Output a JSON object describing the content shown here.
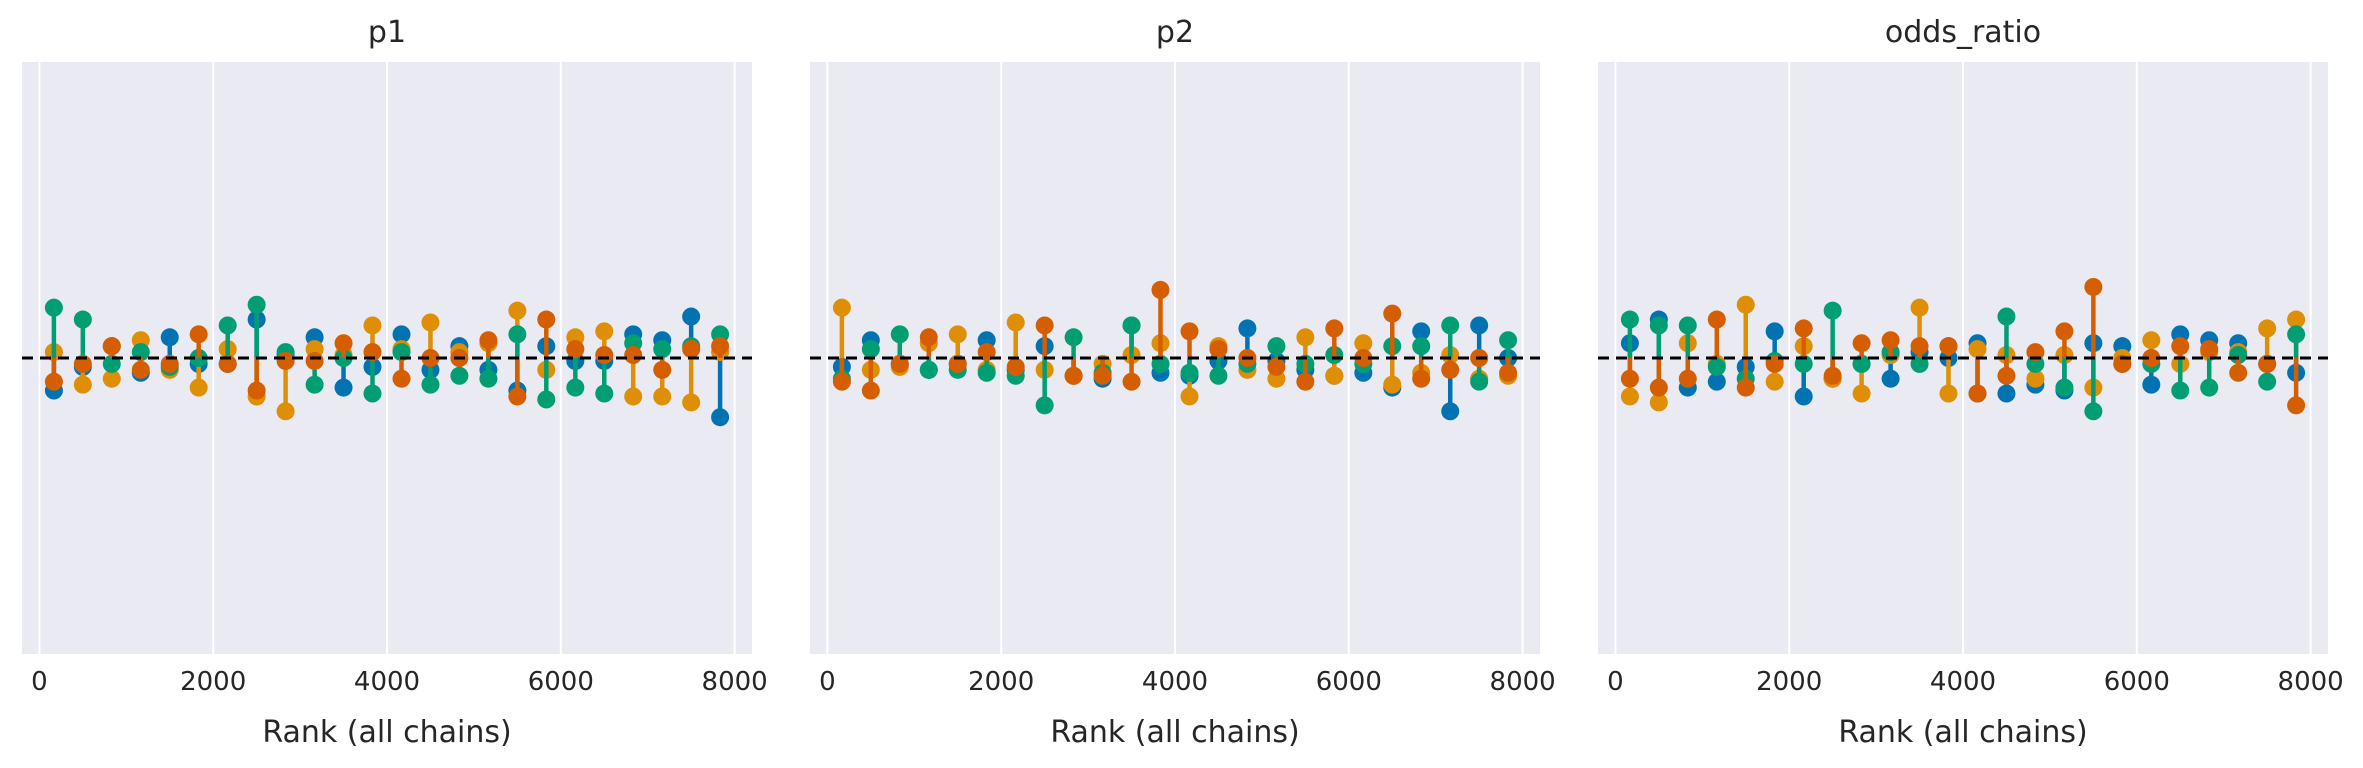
{
  "colors": {
    "background": "#eaeaf2",
    "grid": "#ffffff",
    "reference_line": "#000000"
  },
  "chart_data": [
    {
      "type": "rank_vlines",
      "title": "p1",
      "xlabel": "Rank (all chains)",
      "xticks": [
        0,
        2000,
        4000,
        6000,
        8000
      ],
      "xlim": [
        -200,
        8200
      ],
      "ylim": [
        -5,
        5
      ],
      "grid": "vertical",
      "reference_line": 0,
      "x": [
        167,
        500,
        833,
        1167,
        1500,
        1833,
        2167,
        2500,
        2833,
        3167,
        3500,
        3833,
        4167,
        4500,
        4833,
        5167,
        5500,
        5833,
        6167,
        6500,
        6833,
        7167,
        7500,
        7833
      ],
      "series": [
        {
          "color": "#0173b2",
          "values": [
            -0.55,
            -0.15,
            0.2,
            -0.25,
            0.35,
            -0.1,
            -0.1,
            0.65,
            0.05,
            0.35,
            -0.5,
            -0.15,
            0.4,
            -0.2,
            0.2,
            -0.2,
            -0.55,
            0.2,
            -0.05,
            -0.05,
            0.4,
            0.3,
            0.7,
            -1.0
          ]
        },
        {
          "color": "#de8f05",
          "values": [
            0.1,
            -0.45,
            -0.35,
            0.3,
            -0.2,
            -0.5,
            0.15,
            -0.65,
            -0.9,
            0.15,
            0.05,
            0.55,
            0.15,
            0.6,
            0.1,
            0.25,
            0.8,
            -0.2,
            0.35,
            0.45,
            -0.65,
            -0.65,
            -0.75,
            0.1
          ]
        },
        {
          "color": "#029e73",
          "values": [
            0.85,
            0.65,
            -0.1,
            0.1,
            -0.15,
            0.0,
            0.55,
            0.9,
            0.1,
            -0.45,
            0.0,
            -0.6,
            0.1,
            -0.45,
            -0.3,
            -0.35,
            0.4,
            -0.7,
            -0.5,
            -0.6,
            0.25,
            0.15,
            0.2,
            0.4
          ]
        },
        {
          "color": "#d55e00",
          "values": [
            -0.4,
            -0.1,
            0.2,
            -0.2,
            -0.1,
            0.4,
            -0.1,
            -0.55,
            -0.05,
            -0.05,
            0.25,
            0.1,
            -0.35,
            0.0,
            0.0,
            0.3,
            -0.65,
            0.65,
            0.15,
            0.05,
            0.05,
            -0.2,
            0.15,
            0.2
          ]
        }
      ]
    },
    {
      "type": "rank_vlines",
      "title": "p2",
      "xlabel": "Rank (all chains)",
      "xticks": [
        0,
        2000,
        4000,
        6000,
        8000
      ],
      "xlim": [
        -200,
        8200
      ],
      "ylim": [
        -5,
        5
      ],
      "grid": "vertical",
      "reference_line": 0,
      "x": [
        167,
        500,
        833,
        1167,
        1500,
        1833,
        2167,
        2500,
        2833,
        3167,
        3500,
        3833,
        4167,
        4500,
        4833,
        5167,
        5500,
        5833,
        6167,
        6500,
        6833,
        7167,
        7500,
        7833
      ],
      "series": [
        {
          "color": "#0173b2",
          "values": [
            -0.15,
            0.3,
            -0.1,
            -0.2,
            -0.1,
            0.3,
            -0.2,
            0.2,
            -0.3,
            -0.35,
            0.55,
            -0.25,
            -0.3,
            -0.05,
            0.5,
            -0.05,
            -0.2,
            -0.3,
            -0.25,
            -0.5,
            0.45,
            -0.9,
            0.55,
            0.0
          ]
        },
        {
          "color": "#de8f05",
          "values": [
            0.85,
            -0.2,
            -0.15,
            0.25,
            0.4,
            -0.2,
            0.6,
            -0.2,
            -0.3,
            -0.1,
            0.05,
            0.25,
            -0.65,
            0.2,
            -0.2,
            -0.35,
            0.35,
            -0.3,
            0.25,
            -0.45,
            -0.25,
            0.05,
            -0.35,
            -0.3
          ]
        },
        {
          "color": "#029e73",
          "values": [
            -0.35,
            0.15,
            0.4,
            -0.2,
            -0.2,
            -0.25,
            -0.3,
            -0.8,
            0.35,
            -0.25,
            0.55,
            -0.1,
            -0.25,
            -0.3,
            -0.1,
            0.2,
            -0.1,
            0.05,
            -0.1,
            0.2,
            0.2,
            0.55,
            -0.4,
            0.3
          ]
        },
        {
          "color": "#d55e00",
          "values": [
            -0.4,
            -0.55,
            -0.1,
            0.35,
            -0.1,
            0.1,
            -0.15,
            0.55,
            -0.3,
            -0.3,
            -0.4,
            1.15,
            0.45,
            0.15,
            0.0,
            -0.15,
            -0.4,
            0.5,
            0.0,
            0.75,
            -0.35,
            -0.2,
            0.0,
            -0.25
          ]
        }
      ]
    },
    {
      "type": "rank_vlines",
      "title": "odds_ratio",
      "xlabel": "Rank (all chains)",
      "xticks": [
        0,
        2000,
        4000,
        6000,
        8000
      ],
      "xlim": [
        -200,
        8200
      ],
      "ylim": [
        -5,
        5
      ],
      "grid": "vertical",
      "reference_line": 0,
      "x": [
        167,
        500,
        833,
        1167,
        1500,
        1833,
        2167,
        2500,
        2833,
        3167,
        3500,
        3833,
        4167,
        4500,
        4833,
        5167,
        5500,
        5833,
        6167,
        6500,
        6833,
        7167,
        7500,
        7833
      ],
      "series": [
        {
          "color": "#0173b2",
          "values": [
            0.25,
            0.65,
            -0.5,
            -0.4,
            -0.15,
            0.45,
            -0.65,
            -0.35,
            -0.1,
            -0.35,
            0.1,
            0.0,
            0.25,
            -0.6,
            -0.45,
            -0.55,
            0.25,
            0.2,
            -0.45,
            0.4,
            0.3,
            0.25,
            -0.1,
            -0.25
          ]
        },
        {
          "color": "#de8f05",
          "values": [
            -0.65,
            -0.75,
            0.25,
            -0.1,
            0.9,
            -0.4,
            0.2,
            -0.35,
            -0.6,
            0.05,
            0.85,
            -0.6,
            0.15,
            0.05,
            -0.35,
            0.05,
            -0.5,
            0.0,
            0.3,
            -0.1,
            0.1,
            0.1,
            0.5,
            0.65
          ]
        },
        {
          "color": "#029e73",
          "values": [
            0.65,
            0.55,
            0.55,
            -0.15,
            -0.35,
            -0.05,
            -0.1,
            0.8,
            -0.1,
            0.1,
            -0.1,
            0.2,
            -0.6,
            0.7,
            -0.1,
            -0.5,
            -0.9,
            -0.1,
            -0.1,
            -0.55,
            -0.5,
            0.05,
            -0.4,
            0.4
          ]
        },
        {
          "color": "#d55e00",
          "values": [
            -0.35,
            -0.5,
            -0.35,
            0.65,
            -0.5,
            -0.1,
            0.5,
            -0.3,
            0.25,
            0.3,
            0.2,
            0.2,
            -0.6,
            -0.3,
            0.1,
            0.45,
            1.2,
            -0.1,
            0.0,
            0.2,
            0.15,
            -0.25,
            -0.1,
            -0.8
          ]
        }
      ]
    }
  ]
}
